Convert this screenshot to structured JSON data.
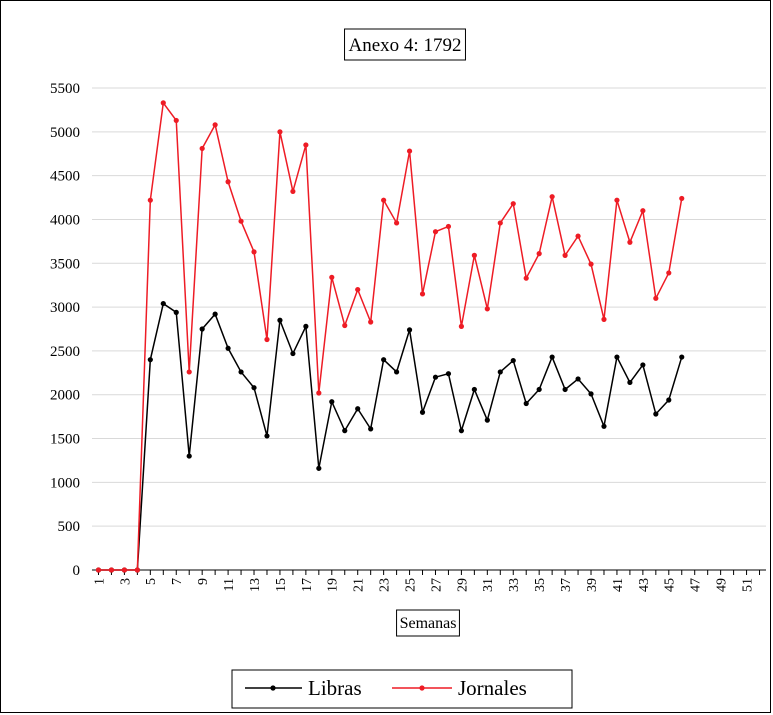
{
  "chart_data": {
    "type": "line",
    "title": "Anexo 4: 1792",
    "xlabel": "Semanas",
    "ylabel": "",
    "ylim": [
      0,
      5500
    ],
    "y_ticks": [
      "0",
      "500",
      "1000",
      "1500",
      "2000",
      "2500",
      "3000",
      "3500",
      "4000",
      "4500",
      "5000",
      "5500"
    ],
    "x_categories": [
      1,
      2,
      3,
      4,
      5,
      6,
      7,
      8,
      9,
      10,
      11,
      12,
      13,
      14,
      15,
      16,
      17,
      18,
      19,
      20,
      21,
      22,
      23,
      24,
      25,
      26,
      27,
      28,
      29,
      30,
      31,
      32,
      33,
      34,
      35,
      36,
      37,
      38,
      39,
      40,
      41,
      42,
      43,
      44,
      45,
      46,
      47,
      48,
      49,
      50,
      51,
      52
    ],
    "x_tick_labels": [
      "1",
      "3",
      "5",
      "7",
      "9",
      "11",
      "13",
      "15",
      "17",
      "19",
      "21",
      "23",
      "25",
      "27",
      "29",
      "31",
      "33",
      "35",
      "37",
      "39",
      "41",
      "43",
      "45",
      "47",
      "49",
      "51"
    ],
    "grid": "horizontal",
    "legend_position": "bottom",
    "series": [
      {
        "name": "Libras",
        "color": "#000000",
        "values": [
          0,
          0,
          0,
          0,
          2400,
          3040,
          2940,
          1300,
          2750,
          2920,
          2530,
          2260,
          2080,
          1530,
          2850,
          2470,
          2780,
          1160,
          1920,
          1590,
          1840,
          1610,
          2400,
          2260,
          2740,
          1800,
          2200,
          2240,
          1590,
          2060,
          1710,
          2260,
          2390,
          1900,
          2060,
          2430,
          2060,
          2180,
          2010,
          1640,
          2430,
          2140,
          2340,
          1780,
          1940,
          2430
        ]
      },
      {
        "name": "Jornales",
        "color": "#ee1c25",
        "values": [
          0,
          0,
          0,
          0,
          4220,
          5330,
          5130,
          2260,
          4810,
          5080,
          4430,
          3980,
          3630,
          2630,
          5000,
          4320,
          4850,
          2020,
          3340,
          2790,
          3200,
          2830,
          4220,
          3960,
          4780,
          3150,
          3860,
          3920,
          2780,
          3590,
          2980,
          3960,
          4180,
          3330,
          3610,
          4260,
          3590,
          3810,
          3490,
          2860,
          4220,
          3740,
          4100,
          3100,
          3390,
          4240
        ]
      }
    ]
  }
}
